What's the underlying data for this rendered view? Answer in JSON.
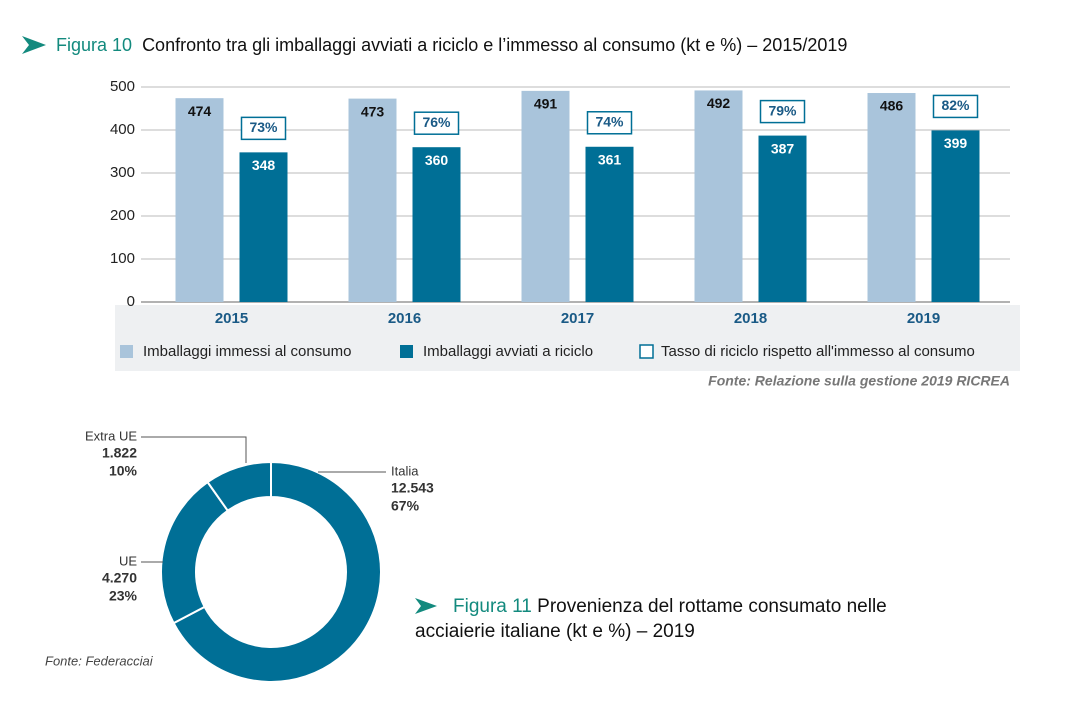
{
  "chart_data": [
    {
      "type": "bar",
      "figure_label": "Figura 10",
      "title": "Confronto tra gli imballaggi avviati a riciclo e l’immesso al consumo (kt e %) – 2015/2019",
      "categories": [
        "2015",
        "2016",
        "2017",
        "2018",
        "2019"
      ],
      "series": [
        {
          "name": "Imballaggi immessi al consumo",
          "color": "#a9c4db",
          "values": [
            474,
            473,
            491,
            492,
            486
          ]
        },
        {
          "name": "Imballaggi avviati a riciclo",
          "color": "#006f96",
          "values": [
            348,
            360,
            361,
            387,
            399
          ]
        },
        {
          "name": "Tasso di riciclo rispetto all'immesso al consumo",
          "color": "#006f96",
          "values": [
            73,
            76,
            74,
            79,
            82
          ],
          "value_labels": [
            "73%",
            "76%",
            "74%",
            "79%",
            "82%"
          ]
        }
      ],
      "ylim": [
        0,
        500
      ],
      "yticks": [
        0,
        100,
        200,
        300,
        400,
        500
      ],
      "grid": true,
      "source": "Fonte: Relazione sulla gestione 2019 RICREA"
    },
    {
      "type": "pie",
      "figure_label": "Figura 11",
      "title": "Provenienza del rottame consumato nelle acciaierie italiane (kt e %) – 2019",
      "categories": [
        "Italia",
        "UE",
        "Extra UE"
      ],
      "values": [
        12543,
        4270,
        1822
      ],
      "value_labels": [
        "12.543",
        "4.270",
        "1.822"
      ],
      "percentages": [
        67,
        23,
        10
      ],
      "percentage_labels": [
        "67%",
        "23%",
        "10%"
      ],
      "color": "#006f96",
      "source": "Fonte: Federacciai"
    }
  ]
}
